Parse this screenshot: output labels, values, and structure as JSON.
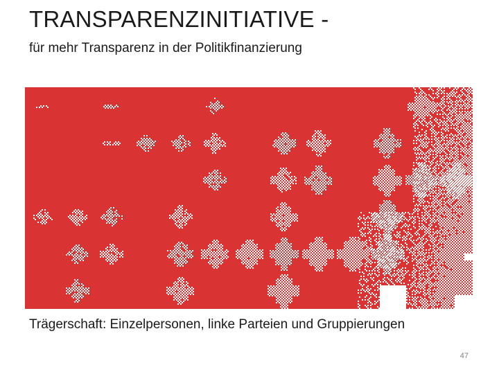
{
  "slide": {
    "title": "TRANSPARENZINITIATIVE -",
    "subtitle": "für mehr Transparenz in der Politikfinanzierung",
    "caption": "Trägerschaft: Einzelpersonen, linke Parteien und Gruppierungen",
    "page_number": "47"
  },
  "pattern": {
    "background_color": "#d93333",
    "glyph_color": "#ffffff"
  }
}
